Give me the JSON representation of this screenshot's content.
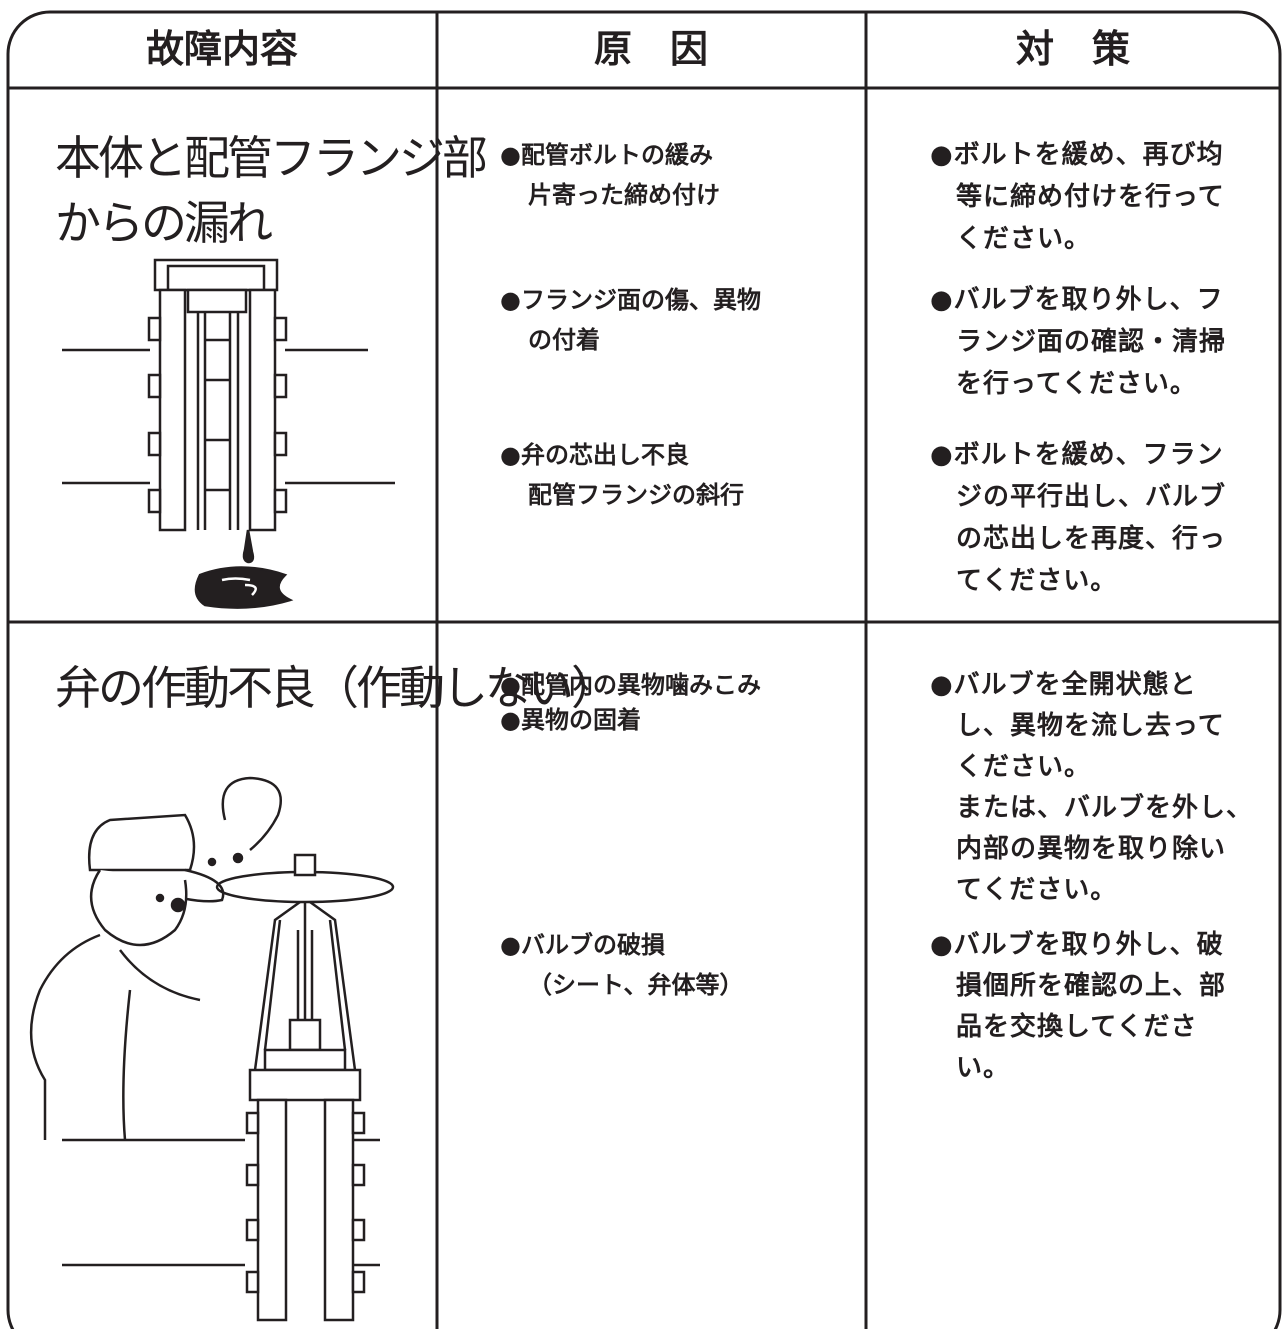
{
  "table": {
    "header": [
      "故障内容",
      "原　因",
      "対　策"
    ],
    "rows": [
      {
        "fault": [
          "本体と配管フランジ部",
          "からの漏れ"
        ],
        "causes": [
          [
            "●配管ボルトの緩み",
            "片寄った締め付け"
          ],
          [
            "●フランジ面の傷、異物",
            "の付着"
          ],
          [
            "●弁の芯出し不良",
            "配管フランジの斜行"
          ]
        ],
        "measures": [
          [
            "●ボルトを緩め、再び均",
            "等に締め付けを行って",
            "ください。"
          ],
          [
            "●バルブを取り外し、フ",
            "ランジ面の確認・清掃",
            "を行ってください。"
          ],
          [
            "●ボルトを緩め、フラン",
            "ジの平行出し、バルブ",
            "の芯出しを再度、行っ",
            "てください。"
          ]
        ]
      },
      {
        "fault": [
          "弁の作動不良（作動しない）"
        ],
        "causes": [
          [
            "●配管内の異物噛みこみ"
          ],
          [
            "●異物の固着"
          ],
          [
            "●バルブの破損",
            "（シート、弁体等）"
          ]
        ],
        "measures": [
          [
            "●バルブを全開状態と",
            "し、異物を流し去って",
            "ください。",
            "または、バルブを外し、",
            "内部の異物を取り除い",
            "てください。"
          ],
          [
            "●バルブを取り外し、破",
            "損個所を確認の上、部",
            "品を交換してくださ",
            "い。"
          ]
        ]
      }
    ]
  }
}
